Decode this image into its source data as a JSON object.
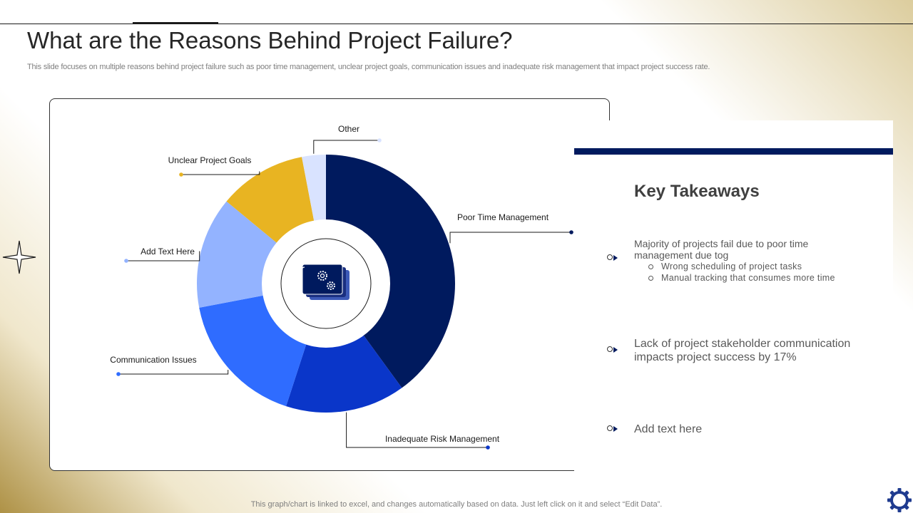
{
  "slide": {
    "title": "What are the Reasons Behind Project Failure?",
    "subtitle": "This slide focuses on multiple reasons behind project failure such as poor time management, unclear project goals, communication issues and inadequate risk management that impact project success rate.",
    "footer": "This graph/chart is linked to excel,  and changes automatically based on data. Just left click on it and select “Edit Data”."
  },
  "chart_data": {
    "type": "pie",
    "donut": true,
    "center_icon": "gears-folder-icon",
    "categories": [
      "Poor Time Management",
      "Inadequate Risk Management",
      "Communication Issues",
      "Add Text Here",
      "Unclear Project Goals",
      "Other"
    ],
    "values": [
      40,
      15,
      17,
      14,
      11,
      3
    ],
    "colors": [
      "#001a5e",
      "#0a36c9",
      "#2f6cff",
      "#93b3ff",
      "#e8b422",
      "#d9e3ff"
    ],
    "title": "",
    "legend": "none"
  },
  "takeaways": {
    "title": "Key Takeaways",
    "items": [
      {
        "text": "Majority of projects fail due to poor time management due tog",
        "sub": [
          "Wrong scheduling of project tasks",
          "Manual tracking that consumes more time"
        ]
      },
      {
        "text": "Lack of project stakeholder communication impacts project success by 17%",
        "sub": []
      },
      {
        "text": "Add text here",
        "sub": []
      }
    ]
  },
  "colors": {
    "navy": "#001a5e",
    "text_dark": "#262626",
    "text_gray": "#595959"
  }
}
